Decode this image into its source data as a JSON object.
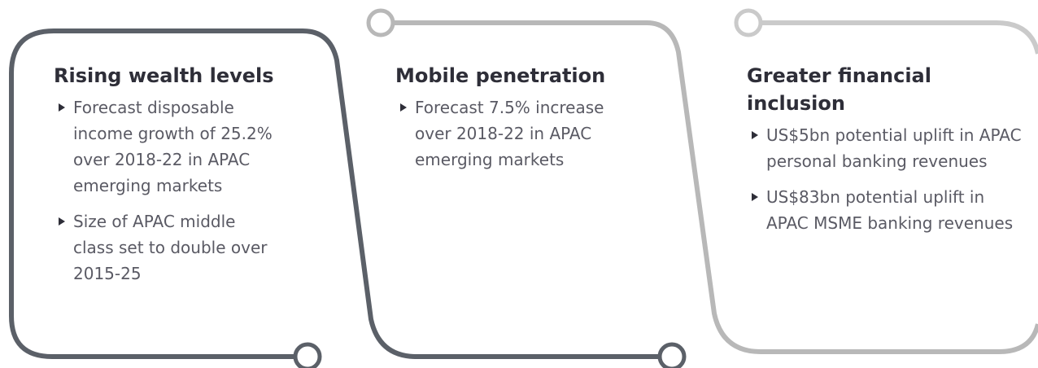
{
  "panels": [
    {
      "title": "Rising wealth levels",
      "bullets": [
        "Forecast disposable income growth of 25.2% over 2018-22 in APAC emerging markets",
        "Size of APAC middle class set to double over 2015-25"
      ]
    },
    {
      "title": "Mobile penetration",
      "bullets": [
        "Forecast 7.5% increase over 2018-22 in APAC emerging markets"
      ]
    },
    {
      "title": "Greater financial inclusion",
      "bullets": [
        "US$5bn potential uplift in APAC personal banking revenues",
        "US$83bn potential uplift in APAC MSME banking revenues"
      ]
    }
  ]
}
